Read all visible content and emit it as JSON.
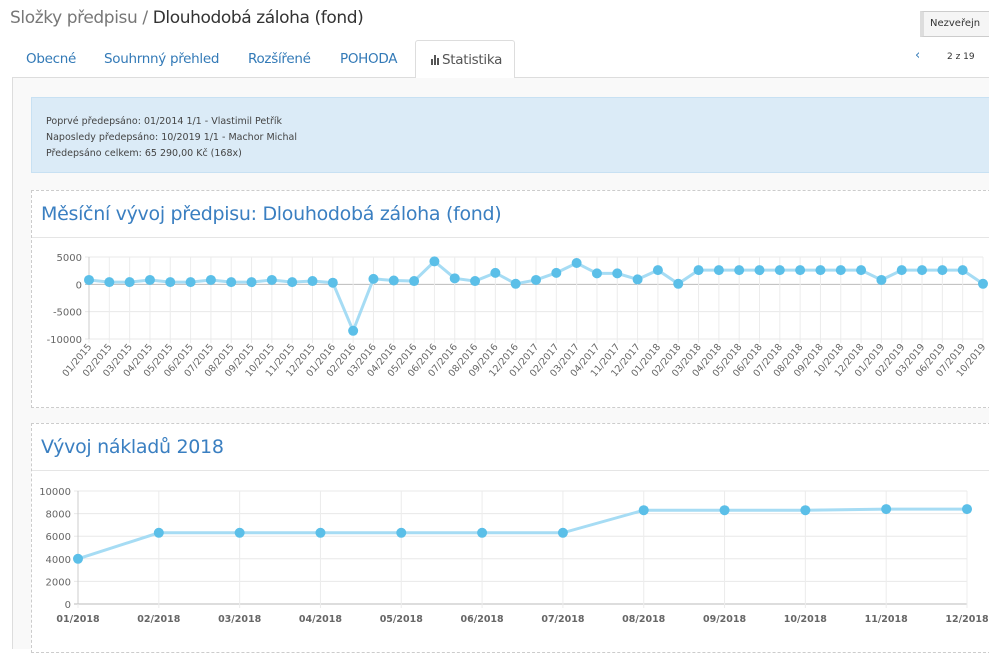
{
  "header": {
    "breadcrumb": "Složky předpisu /",
    "title": "Dlouhodobá záloha (fond)",
    "publish_button": "Nezveřejn"
  },
  "tabs": [
    {
      "label": "Obecné"
    },
    {
      "label": "Souhrnný přehled"
    },
    {
      "label": "Rozšířené"
    },
    {
      "label": "POHODA"
    },
    {
      "label": "Statistika",
      "icon": "bar-chart-icon",
      "active": true
    }
  ],
  "pager": {
    "text": "2 z 19"
  },
  "info": {
    "first_label": "Poprvé předepsáno:",
    "first_value": "01/2014 1/1 - Vlastimil Petřík",
    "last_label": "Naposledy předepsáno:",
    "last_value": "10/2019 1/1 - Machor Michal",
    "total_label": "Předepsáno celkem:",
    "total_value": "65 290,00 Kč (168x)"
  },
  "accent": "#5bbfe8",
  "chart_data": [
    {
      "type": "line",
      "title": "Měsíční vývoj předpisu: Dlouhodobá záloha (fond)",
      "ylim": [
        -10000,
        5000
      ],
      "yticks": [
        "5000",
        "0",
        "-5000",
        "-10000"
      ],
      "ytick_values": [
        5000,
        0,
        -5000,
        -10000
      ],
      "categories": [
        "01/2015",
        "02/2015",
        "03/2015",
        "04/2015",
        "05/2015",
        "06/2015",
        "07/2015",
        "08/2015",
        "09/2015",
        "10/2015",
        "11/2015",
        "12/2015",
        "01/2016",
        "02/2016",
        "03/2016",
        "04/2016",
        "05/2016",
        "06/2016",
        "07/2016",
        "08/2016",
        "09/2016",
        "12/2016",
        "01/2017",
        "02/2017",
        "03/2017",
        "04/2017",
        "11/2017",
        "12/2017",
        "01/2018",
        "02/2018",
        "03/2018",
        "04/2018",
        "05/2018",
        "06/2018",
        "07/2018",
        "08/2018",
        "09/2018",
        "10/2018",
        "12/2018",
        "01/2019",
        "02/2019",
        "03/2019",
        "06/2019",
        "07/2019",
        "10/2019"
      ],
      "values": [
        800,
        400,
        400,
        800,
        400,
        400,
        800,
        400,
        400,
        800,
        400,
        600,
        300,
        -8500,
        1000,
        700,
        600,
        4200,
        1100,
        600,
        2100,
        100,
        800,
        2100,
        3900,
        2000,
        2000,
        900,
        2600,
        100,
        2600,
        2600,
        2600,
        2600,
        2600,
        2600,
        2600,
        2600,
        2600,
        800,
        2600,
        2600,
        2600,
        2600,
        100
      ]
    },
    {
      "type": "line",
      "title": "Vývoj nákladů 2018",
      "ylim": [
        0,
        10000
      ],
      "yticks": [
        "10000",
        "8000",
        "6000",
        "4000",
        "2000",
        "0"
      ],
      "ytick_values": [
        10000,
        8000,
        6000,
        4000,
        2000,
        0
      ],
      "categories": [
        "01/2018",
        "02/2018",
        "03/2018",
        "04/2018",
        "05/2018",
        "06/2018",
        "07/2018",
        "08/2018",
        "09/2018",
        "10/2018",
        "11/2018",
        "12/2018"
      ],
      "values": [
        4000,
        6300,
        6300,
        6300,
        6300,
        6300,
        6300,
        8300,
        8300,
        8300,
        8400,
        8400
      ]
    }
  ]
}
